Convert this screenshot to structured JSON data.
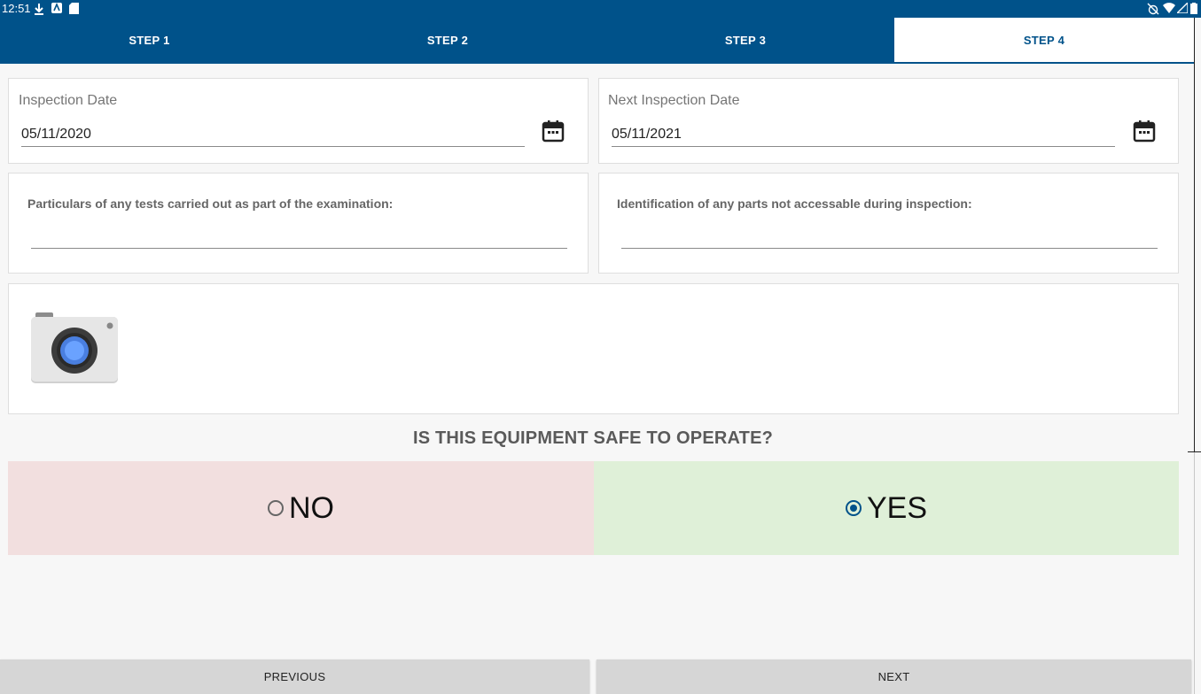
{
  "status_bar": {
    "time": "12:51"
  },
  "tabs": [
    {
      "label": "STEP 1",
      "active": false
    },
    {
      "label": "STEP 2",
      "active": false
    },
    {
      "label": "STEP 3",
      "active": false
    },
    {
      "label": "STEP 4",
      "active": true
    }
  ],
  "inspection_date": {
    "label": "Inspection Date",
    "value": "05/11/2020",
    "icon": "calendar-icon"
  },
  "next_inspection_date": {
    "label": "Next Inspection Date",
    "value": "05/11/2021",
    "icon": "calendar-icon"
  },
  "tests_field": {
    "label": "Particulars of any tests carried out as part of the examination:",
    "value": ""
  },
  "parts_field": {
    "label": "Identification of any parts not accessable during inspection:",
    "value": ""
  },
  "camera": {
    "icon": "camera-icon"
  },
  "safety": {
    "question": "IS THIS EQUIPMENT SAFE TO OPERATE?",
    "no_label": "NO",
    "yes_label": "YES",
    "selected": "YES",
    "colors": {
      "no_bg": "#f2dfdf",
      "yes_bg": "#dff0d8"
    }
  },
  "footer": {
    "previous_label": "PREVIOUS",
    "next_label": "NEXT"
  },
  "colors": {
    "brand": "#00528a"
  }
}
